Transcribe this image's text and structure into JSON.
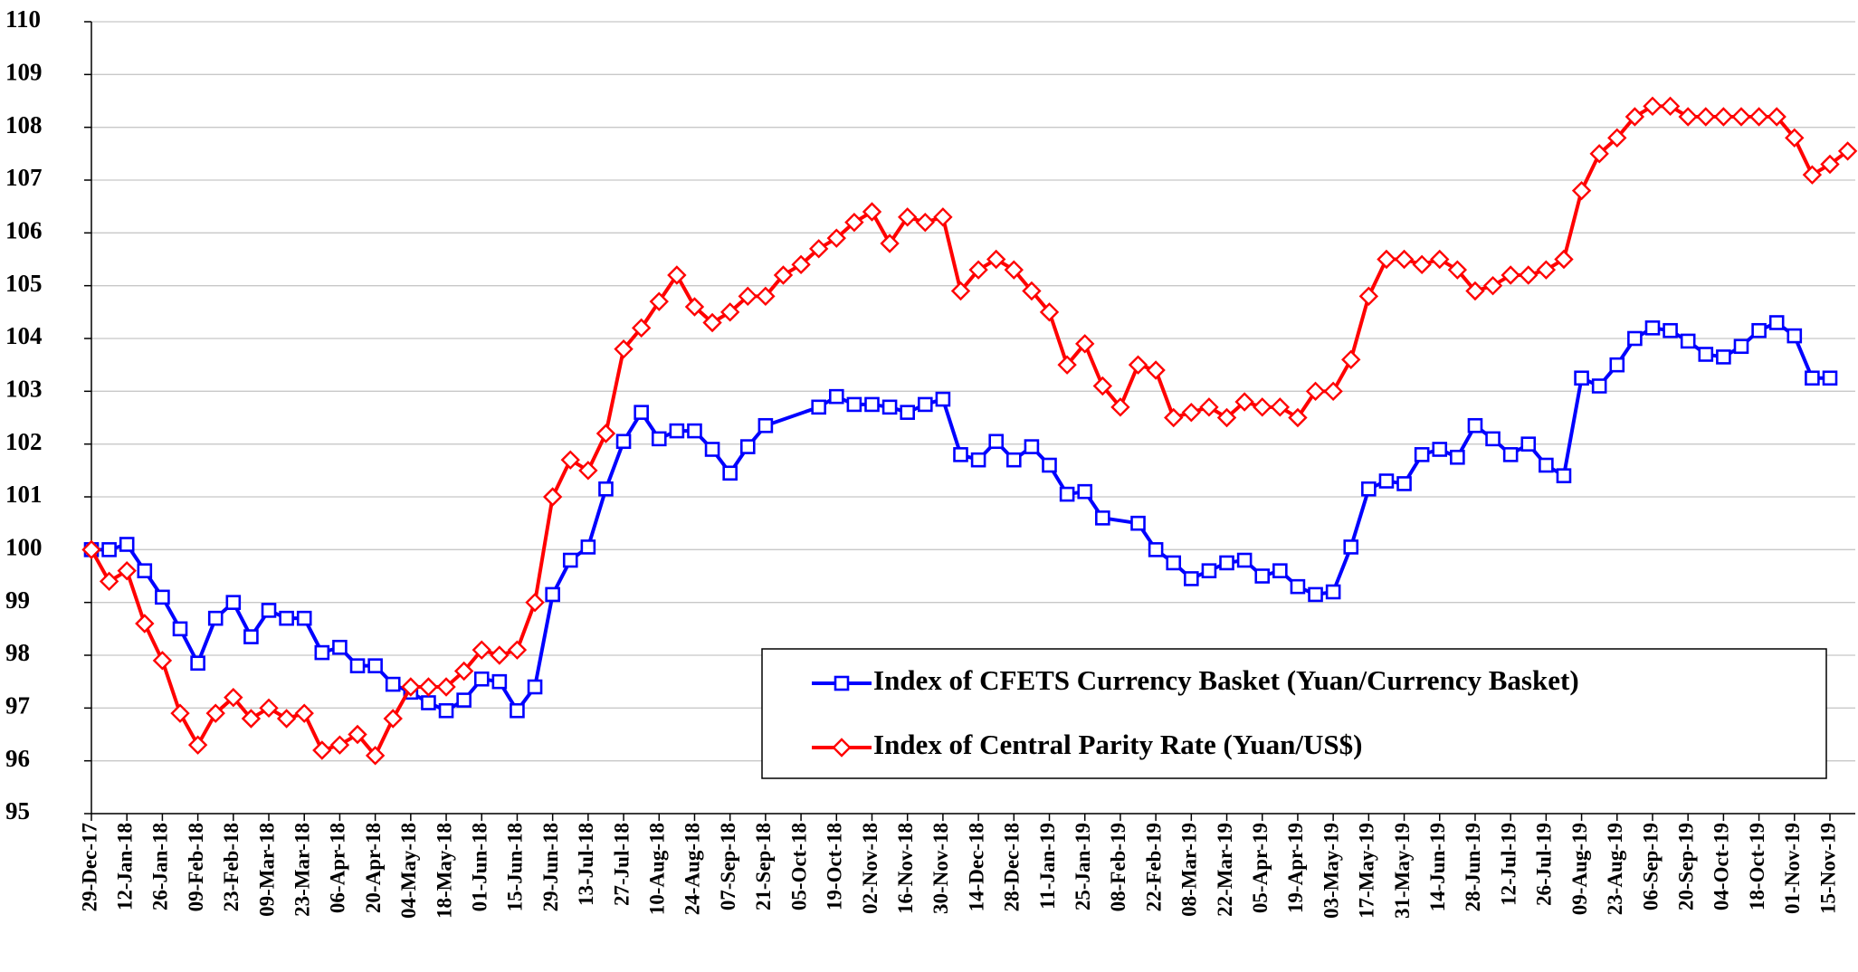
{
  "chart_data": {
    "type": "line",
    "ylim": [
      95,
      110
    ],
    "yticks": [
      95,
      96,
      97,
      98,
      99,
      100,
      101,
      102,
      103,
      104,
      105,
      106,
      107,
      108,
      109,
      110
    ],
    "grid": true,
    "xlim": [
      "2017-12-29",
      "2019-11-25"
    ],
    "xticks": [
      {
        "value": "2017-12-29",
        "label": "29-Dec-17"
      },
      {
        "value": "2018-01-12",
        "label": "12-Jan-18"
      },
      {
        "value": "2018-01-26",
        "label": "26-Jan-18"
      },
      {
        "value": "2018-02-09",
        "label": "09-Feb-18"
      },
      {
        "value": "2018-02-23",
        "label": "23-Feb-18"
      },
      {
        "value": "2018-03-09",
        "label": "09-Mar-18"
      },
      {
        "value": "2018-03-23",
        "label": "23-Mar-18"
      },
      {
        "value": "2018-04-06",
        "label": "06-Apr-18"
      },
      {
        "value": "2018-04-20",
        "label": "20-Apr-18"
      },
      {
        "value": "2018-05-04",
        "label": "04-May-18"
      },
      {
        "value": "2018-05-18",
        "label": "18-May-18"
      },
      {
        "value": "2018-06-01",
        "label": "01-Jun-18"
      },
      {
        "value": "2018-06-15",
        "label": "15-Jun-18"
      },
      {
        "value": "2018-06-29",
        "label": "29-Jun-18"
      },
      {
        "value": "2018-07-13",
        "label": "13-Jul-18"
      },
      {
        "value": "2018-07-27",
        "label": "27-Jul-18"
      },
      {
        "value": "2018-08-10",
        "label": "10-Aug-18"
      },
      {
        "value": "2018-08-24",
        "label": "24-Aug-18"
      },
      {
        "value": "2018-09-07",
        "label": "07-Sep-18"
      },
      {
        "value": "2018-09-21",
        "label": "21-Sep-18"
      },
      {
        "value": "2018-10-05",
        "label": "05-Oct-18"
      },
      {
        "value": "2018-10-19",
        "label": "19-Oct-18"
      },
      {
        "value": "2018-11-02",
        "label": "02-Nov-18"
      },
      {
        "value": "2018-11-16",
        "label": "16-Nov-18"
      },
      {
        "value": "2018-11-30",
        "label": "30-Nov-18"
      },
      {
        "value": "2018-12-14",
        "label": "14-Dec-18"
      },
      {
        "value": "2018-12-28",
        "label": "28-Dec-18"
      },
      {
        "value": "2019-01-11",
        "label": "11-Jan-19"
      },
      {
        "value": "2019-01-25",
        "label": "25-Jan-19"
      },
      {
        "value": "2019-02-08",
        "label": "08-Feb-19"
      },
      {
        "value": "2019-02-22",
        "label": "22-Feb-19"
      },
      {
        "value": "2019-03-08",
        "label": "08-Mar-19"
      },
      {
        "value": "2019-03-22",
        "label": "22-Mar-19"
      },
      {
        "value": "2019-04-05",
        "label": "05-Apr-19"
      },
      {
        "value": "2019-04-19",
        "label": "19-Apr-19"
      },
      {
        "value": "2019-05-03",
        "label": "03-May-19"
      },
      {
        "value": "2019-05-17",
        "label": "17-May-19"
      },
      {
        "value": "2019-05-31",
        "label": "31-May-19"
      },
      {
        "value": "2019-06-14",
        "label": "14-Jun-19"
      },
      {
        "value": "2019-06-28",
        "label": "28-Jun-19"
      },
      {
        "value": "2019-07-12",
        "label": "12-Jul-19"
      },
      {
        "value": "2019-07-26",
        "label": "26-Jul-19"
      },
      {
        "value": "2019-08-09",
        "label": "09-Aug-19"
      },
      {
        "value": "2019-08-23",
        "label": "23-Aug-19"
      },
      {
        "value": "2019-09-06",
        "label": "06-Sep-19"
      },
      {
        "value": "2019-09-20",
        "label": "20-Sep-19"
      },
      {
        "value": "2019-10-04",
        "label": "04-Oct-19"
      },
      {
        "value": "2019-10-18",
        "label": "18-Oct-19"
      },
      {
        "value": "2019-11-01",
        "label": "01-Nov-19"
      },
      {
        "value": "2019-11-15",
        "label": "15-Nov-19"
      }
    ],
    "series": [
      {
        "name": "Index of CFETS Currency Basket (Yuan/Currency Basket)",
        "color": "#0000ff",
        "marker": "square",
        "x": [
          "2017-12-29",
          "2018-01-05",
          "2018-01-12",
          "2018-01-19",
          "2018-01-26",
          "2018-02-02",
          "2018-02-09",
          "2018-02-16",
          "2018-02-23",
          "2018-03-02",
          "2018-03-09",
          "2018-03-16",
          "2018-03-23",
          "2018-03-30",
          "2018-04-06",
          "2018-04-13",
          "2018-04-20",
          "2018-04-27",
          "2018-05-04",
          "2018-05-11",
          "2018-05-18",
          "2018-05-25",
          "2018-06-01",
          "2018-06-08",
          "2018-06-15",
          "2018-06-22",
          "2018-06-29",
          "2018-07-06",
          "2018-07-13",
          "2018-07-20",
          "2018-07-27",
          "2018-08-03",
          "2018-08-10",
          "2018-08-17",
          "2018-08-24",
          "2018-08-31",
          "2018-09-07",
          "2018-09-14",
          "2018-09-21",
          "2018-10-12",
          "2018-10-19",
          "2018-10-26",
          "2018-11-02",
          "2018-11-09",
          "2018-11-16",
          "2018-11-23",
          "2018-11-30",
          "2018-12-07",
          "2018-12-14",
          "2018-12-21",
          "2018-12-28",
          "2019-01-04",
          "2019-01-11",
          "2019-01-18",
          "2019-01-25",
          "2019-02-01",
          "2019-02-15",
          "2019-02-22",
          "2019-03-01",
          "2019-03-08",
          "2019-03-15",
          "2019-03-22",
          "2019-03-29",
          "2019-04-05",
          "2019-04-12",
          "2019-04-19",
          "2019-04-26",
          "2019-05-03",
          "2019-05-10",
          "2019-05-17",
          "2019-05-24",
          "2019-05-31",
          "2019-06-07",
          "2019-06-14",
          "2019-06-21",
          "2019-06-28",
          "2019-07-05",
          "2019-07-12",
          "2019-07-19",
          "2019-07-26",
          "2019-08-02",
          "2019-08-09",
          "2019-08-16",
          "2019-08-23",
          "2019-08-30",
          "2019-09-06",
          "2019-09-13",
          "2019-09-20",
          "2019-09-27",
          "2019-10-04",
          "2019-10-11",
          "2019-10-18",
          "2019-10-25",
          "2019-11-01",
          "2019-11-08",
          "2019-11-15"
        ],
        "values": [
          100.0,
          100.0,
          100.1,
          99.6,
          99.1,
          98.5,
          97.85,
          98.7,
          99.0,
          98.35,
          98.85,
          98.7,
          98.7,
          98.05,
          98.15,
          97.8,
          97.8,
          97.45,
          97.3,
          97.1,
          96.95,
          97.15,
          97.55,
          97.5,
          96.95,
          97.4,
          99.15,
          99.8,
          100.05,
          101.15,
          102.05,
          102.6,
          102.1,
          102.25,
          102.25,
          101.9,
          101.45,
          101.95,
          102.35,
          102.7,
          102.9,
          102.75,
          102.75,
          102.7,
          102.6,
          102.75,
          102.85,
          101.8,
          101.7,
          102.05,
          101.7,
          101.95,
          101.6,
          101.05,
          101.1,
          100.6,
          100.5,
          100.0,
          99.75,
          99.45,
          99.6,
          99.75,
          99.8,
          99.5,
          99.6,
          99.3,
          99.15,
          99.2,
          100.05,
          101.15,
          101.3,
          101.25,
          101.8,
          101.9,
          101.75,
          102.35,
          102.1,
          101.8,
          102.0,
          101.6,
          101.4,
          103.25,
          103.1,
          103.5,
          104.0,
          104.2,
          104.15,
          103.95,
          103.7,
          103.65,
          103.85,
          104.15,
          104.3,
          104.05,
          103.25,
          103.25
        ]
      },
      {
        "name": "Index of Central Parity Rate (Yuan/US$)",
        "color": "#ff0000",
        "marker": "diamond",
        "x": [
          "2017-12-29",
          "2018-01-05",
          "2018-01-12",
          "2018-01-19",
          "2018-01-26",
          "2018-02-02",
          "2018-02-09",
          "2018-02-16",
          "2018-02-23",
          "2018-03-02",
          "2018-03-09",
          "2018-03-16",
          "2018-03-23",
          "2018-03-30",
          "2018-04-06",
          "2018-04-13",
          "2018-04-20",
          "2018-04-27",
          "2018-05-04",
          "2018-05-11",
          "2018-05-18",
          "2018-05-25",
          "2018-06-01",
          "2018-06-08",
          "2018-06-15",
          "2018-06-22",
          "2018-06-29",
          "2018-07-06",
          "2018-07-13",
          "2018-07-20",
          "2018-07-27",
          "2018-08-03",
          "2018-08-10",
          "2018-08-17",
          "2018-08-24",
          "2018-08-31",
          "2018-09-07",
          "2018-09-14",
          "2018-09-21",
          "2018-09-28",
          "2018-10-05",
          "2018-10-12",
          "2018-10-19",
          "2018-10-26",
          "2018-11-02",
          "2018-11-09",
          "2018-11-16",
          "2018-11-23",
          "2018-11-30",
          "2018-12-07",
          "2018-12-14",
          "2018-12-21",
          "2018-12-28",
          "2019-01-04",
          "2019-01-11",
          "2019-01-18",
          "2019-01-25",
          "2019-02-01",
          "2019-02-08",
          "2019-02-15",
          "2019-02-22",
          "2019-03-01",
          "2019-03-08",
          "2019-03-15",
          "2019-03-22",
          "2019-03-29",
          "2019-04-05",
          "2019-04-12",
          "2019-04-19",
          "2019-04-26",
          "2019-05-03",
          "2019-05-10",
          "2019-05-17",
          "2019-05-24",
          "2019-05-31",
          "2019-06-07",
          "2019-06-14",
          "2019-06-21",
          "2019-06-28",
          "2019-07-05",
          "2019-07-12",
          "2019-07-19",
          "2019-07-26",
          "2019-08-02",
          "2019-08-09",
          "2019-08-16",
          "2019-08-23",
          "2019-08-30",
          "2019-09-06",
          "2019-09-13",
          "2019-09-20",
          "2019-09-27",
          "2019-10-04",
          "2019-10-11",
          "2019-10-18",
          "2019-10-25",
          "2019-11-01",
          "2019-11-08",
          "2019-11-15",
          "2019-11-22"
        ],
        "values": [
          100.0,
          99.4,
          99.6,
          98.6,
          97.9,
          96.9,
          96.3,
          96.9,
          97.2,
          96.8,
          97.0,
          96.8,
          96.9,
          96.2,
          96.3,
          96.5,
          96.1,
          96.8,
          97.4,
          97.4,
          97.4,
          97.7,
          98.1,
          98.0,
          98.1,
          99.0,
          101.0,
          101.7,
          101.5,
          102.2,
          103.8,
          104.2,
          104.7,
          105.2,
          104.6,
          104.3,
          104.5,
          104.8,
          104.8,
          105.2,
          105.4,
          105.7,
          105.9,
          106.2,
          106.4,
          105.8,
          106.3,
          106.2,
          106.3,
          104.9,
          105.3,
          105.5,
          105.3,
          104.9,
          104.5,
          103.5,
          103.9,
          103.1,
          102.7,
          103.5,
          103.4,
          102.5,
          102.6,
          102.7,
          102.5,
          102.8,
          102.7,
          102.7,
          102.5,
          103.0,
          103.0,
          103.6,
          104.8,
          105.5,
          105.5,
          105.4,
          105.5,
          105.3,
          104.9,
          105.0,
          105.2,
          105.2,
          105.3,
          105.5,
          106.8,
          107.5,
          107.8,
          108.2,
          108.4,
          108.4,
          108.2,
          108.2,
          108.2,
          108.2,
          108.2,
          108.2,
          107.8,
          107.1,
          107.3,
          107.55
        ]
      }
    ],
    "legend": "lower right"
  }
}
